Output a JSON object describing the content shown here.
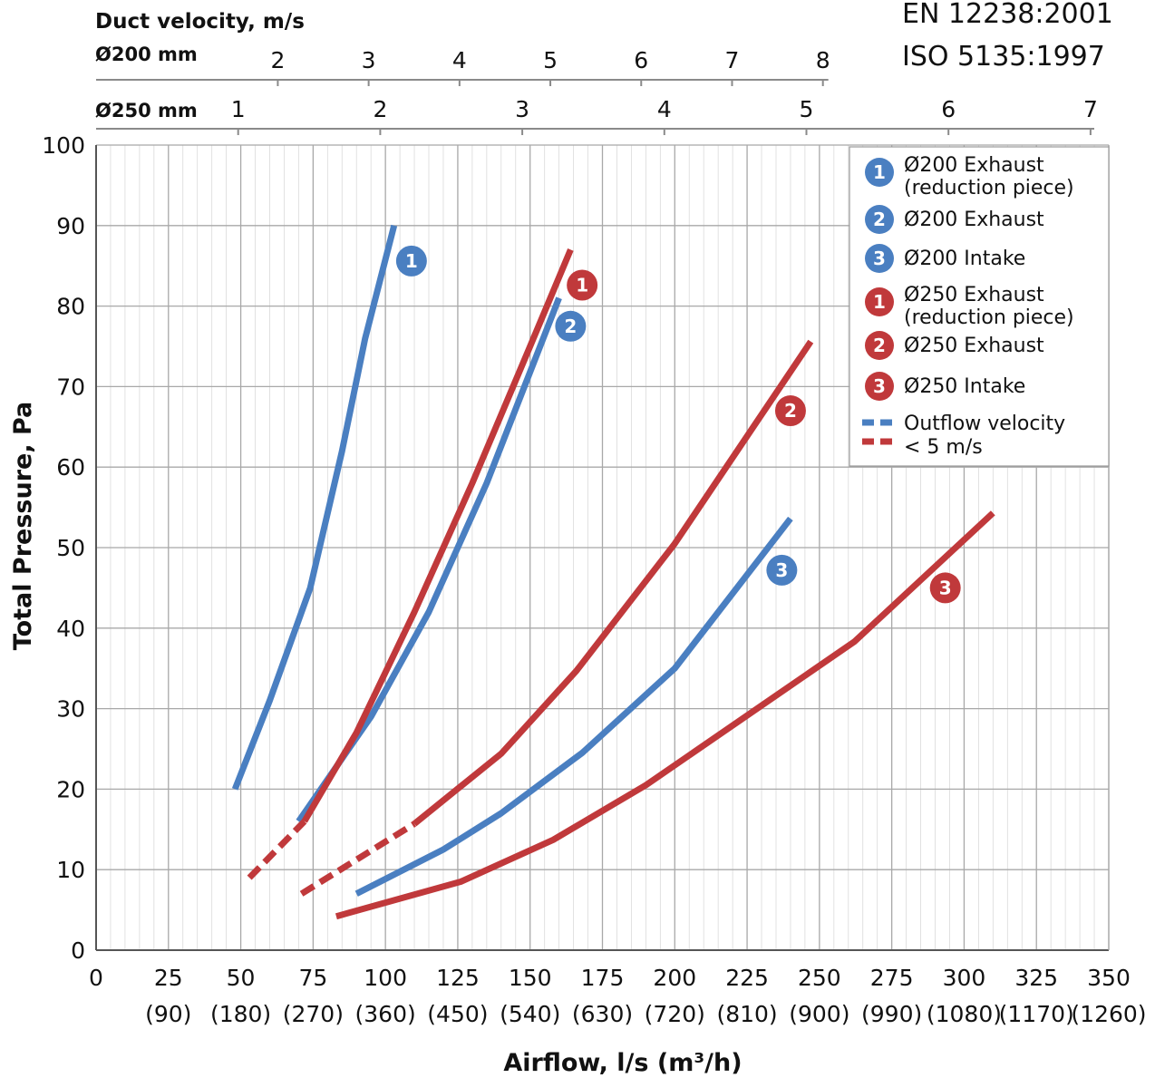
{
  "standards": [
    "EN 12238:2001",
    "ISO 5135:1997"
  ],
  "chart_data": {
    "type": "line",
    "xlabel": "Airflow, l/s (m³/h)",
    "ylabel": "Total Pressure, Pa",
    "xlim": [
      0,
      350
    ],
    "ylim": [
      0,
      100
    ],
    "x_ticks": [
      0,
      25,
      50,
      75,
      100,
      125,
      150,
      175,
      200,
      225,
      250,
      275,
      300,
      325,
      350
    ],
    "x_ticks_secondary": [
      "(90)",
      "(180)",
      "(270)",
      "(360)",
      "(450)",
      "(540)",
      "(630)",
      "(720)",
      "(810)",
      "(900)",
      "(990)",
      "(1080)",
      "(1170)",
      "(1260)"
    ],
    "y_ticks": [
      0,
      10,
      20,
      30,
      40,
      50,
      60,
      70,
      80,
      90,
      100
    ],
    "grid": true,
    "legend_position": "top-right",
    "duct_velocity_axis": {
      "title": "Duct velocity, m/s",
      "scales": [
        {
          "label": "Ø200 mm",
          "ticks": [
            "2",
            "3",
            "4",
            "5",
            "6",
            "7",
            "8"
          ],
          "values": [
            2,
            3,
            4,
            5,
            6,
            7,
            8
          ],
          "l_per_m_s": 31.4
        },
        {
          "label": "Ø250 mm",
          "ticks": [
            "1",
            "2",
            "3",
            "4",
            "5",
            "6",
            "7"
          ],
          "values": [
            1,
            2,
            3,
            4,
            5,
            6,
            7
          ],
          "l_per_m_s": 49.1
        }
      ]
    },
    "series": [
      {
        "name": "Ø200 Exhaust (reduction piece)",
        "badge": "1",
        "color": "#4a7fc1",
        "x": [
          48,
          60,
          74,
          85,
          93,
          103
        ],
        "y": [
          20,
          31,
          45,
          62,
          76,
          90
        ],
        "low_velocity_until": null,
        "marker": {
          "x": 109,
          "y": 85.6
        }
      },
      {
        "name": "Ø200 Exhaust",
        "badge": "2",
        "color": "#4a7fc1",
        "x": [
          70,
          95,
          115,
          135,
          160
        ],
        "y": [
          16,
          29,
          42,
          58,
          81
        ],
        "low_velocity_until": null,
        "marker": {
          "x": 164,
          "y": 77.5
        }
      },
      {
        "name": "Ø200 Intake",
        "badge": "3",
        "color": "#4a7fc1",
        "x": [
          90,
          120,
          140,
          168,
          200,
          240
        ],
        "y": [
          7,
          12.5,
          17,
          24.5,
          35,
          53.6
        ],
        "low_velocity_until": null,
        "marker": {
          "x": 237,
          "y": 47.2
        }
      },
      {
        "name": "Ø250 Exhaust (reduction piece)",
        "badge": "1",
        "color": "#c0393b",
        "x": [
          53,
          72,
          90,
          110,
          130,
          150,
          164
        ],
        "y": [
          9,
          16,
          27,
          42,
          58,
          75,
          87
        ],
        "low_velocity_until": 72,
        "marker": {
          "x": 168,
          "y": 82.6
        }
      },
      {
        "name": "Ø250 Exhaust",
        "badge": "2",
        "color": "#c0393b",
        "x": [
          71,
          110,
          140,
          166,
          200,
          247
        ],
        "y": [
          7,
          15.7,
          24.4,
          34.7,
          50.5,
          75.6
        ],
        "low_velocity_until": 110,
        "marker": {
          "x": 240,
          "y": 67
        }
      },
      {
        "name": "Ø250 Intake",
        "badge": "3",
        "color": "#c0393b",
        "x": [
          83,
          126,
          158,
          190,
          262,
          310
        ],
        "y": [
          4.2,
          8.5,
          13.7,
          20.5,
          38.3,
          54.3
        ],
        "low_velocity_until": null,
        "marker": {
          "x": 293.5,
          "y": 45
        }
      }
    ],
    "legend_extra": {
      "label_line1": "Outflow velocity",
      "label_line2": "< 5 m/s",
      "colors": [
        "#4a7fc1",
        "#c0393b"
      ]
    }
  }
}
